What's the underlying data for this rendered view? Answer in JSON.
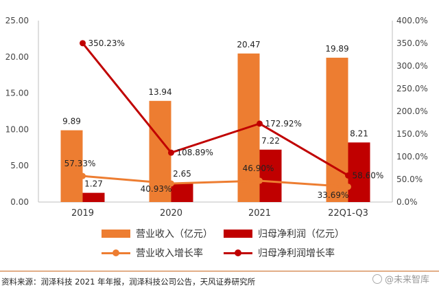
{
  "chart_data": {
    "type": "bar",
    "categories": [
      "2019",
      "2020",
      "2021",
      "22Q1-Q3"
    ],
    "series": [
      {
        "name": "营业收入（亿元）",
        "kind": "bar",
        "axis": "left",
        "color": "#ED7D31",
        "values": [
          9.89,
          13.94,
          20.47,
          19.89
        ],
        "labels": [
          "9.89",
          "13.94",
          "20.47",
          "19.89"
        ]
      },
      {
        "name": "归母净利润（亿元）",
        "kind": "bar",
        "axis": "left",
        "color": "#C00000",
        "values": [
          1.27,
          2.65,
          7.22,
          8.21
        ],
        "labels": [
          "1.27",
          "2.65",
          "7.22",
          "8.21"
        ]
      },
      {
        "name": "营业收入增长率",
        "kind": "line",
        "axis": "right",
        "color": "#ED7D31",
        "values": [
          57.33,
          40.93,
          46.9,
          33.69
        ],
        "labels": [
          "57.33%",
          "40.93%",
          "46.90%",
          "33.69%"
        ]
      },
      {
        "name": "归母净利润增长率",
        "kind": "line",
        "axis": "right",
        "color": "#C00000",
        "values": [
          350.23,
          108.89,
          172.92,
          58.6
        ],
        "labels": [
          "350.23%",
          "108.89%",
          "172.92%",
          "58.60%"
        ]
      }
    ],
    "ylim_left": [
      0,
      25
    ],
    "yticks_left": [
      "0.00",
      "5.00",
      "10.00",
      "15.00",
      "20.00",
      "25.00"
    ],
    "ylim_right": [
      0,
      400
    ],
    "yticks_right": [
      "0.0%",
      "50.0%",
      "100.0%",
      "150.0%",
      "200.0%",
      "250.0%",
      "300.0%",
      "350.0%",
      "400.0%"
    ],
    "grid": false,
    "legend_position": "bottom"
  },
  "source_text": "资料来源：润泽科技 2021 年年报，润泽科技公司公告，天风证券研究所",
  "watermark": {
    "text": "@未来智库",
    "icon": "circle-logo-icon"
  }
}
